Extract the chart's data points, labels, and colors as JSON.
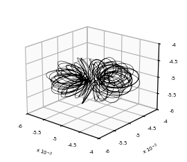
{
  "title": "",
  "xlim": [
    -0.006,
    -0.004
  ],
  "ylim": [
    -0.006,
    -0.004
  ],
  "zlim": [
    -0.006,
    -0.004
  ],
  "xtick_vals": [
    -6,
    -5.5,
    -5,
    -4.5,
    -4
  ],
  "ytick_vals": [
    -6,
    -5.5,
    -5,
    -4.5,
    -4
  ],
  "ztick_vals": [
    -4,
    -4.5,
    -5,
    -5.5,
    -6
  ],
  "line_color": "black",
  "line_width": 0.4,
  "background_color": "#ffffff",
  "elev": 20,
  "azim": -50
}
